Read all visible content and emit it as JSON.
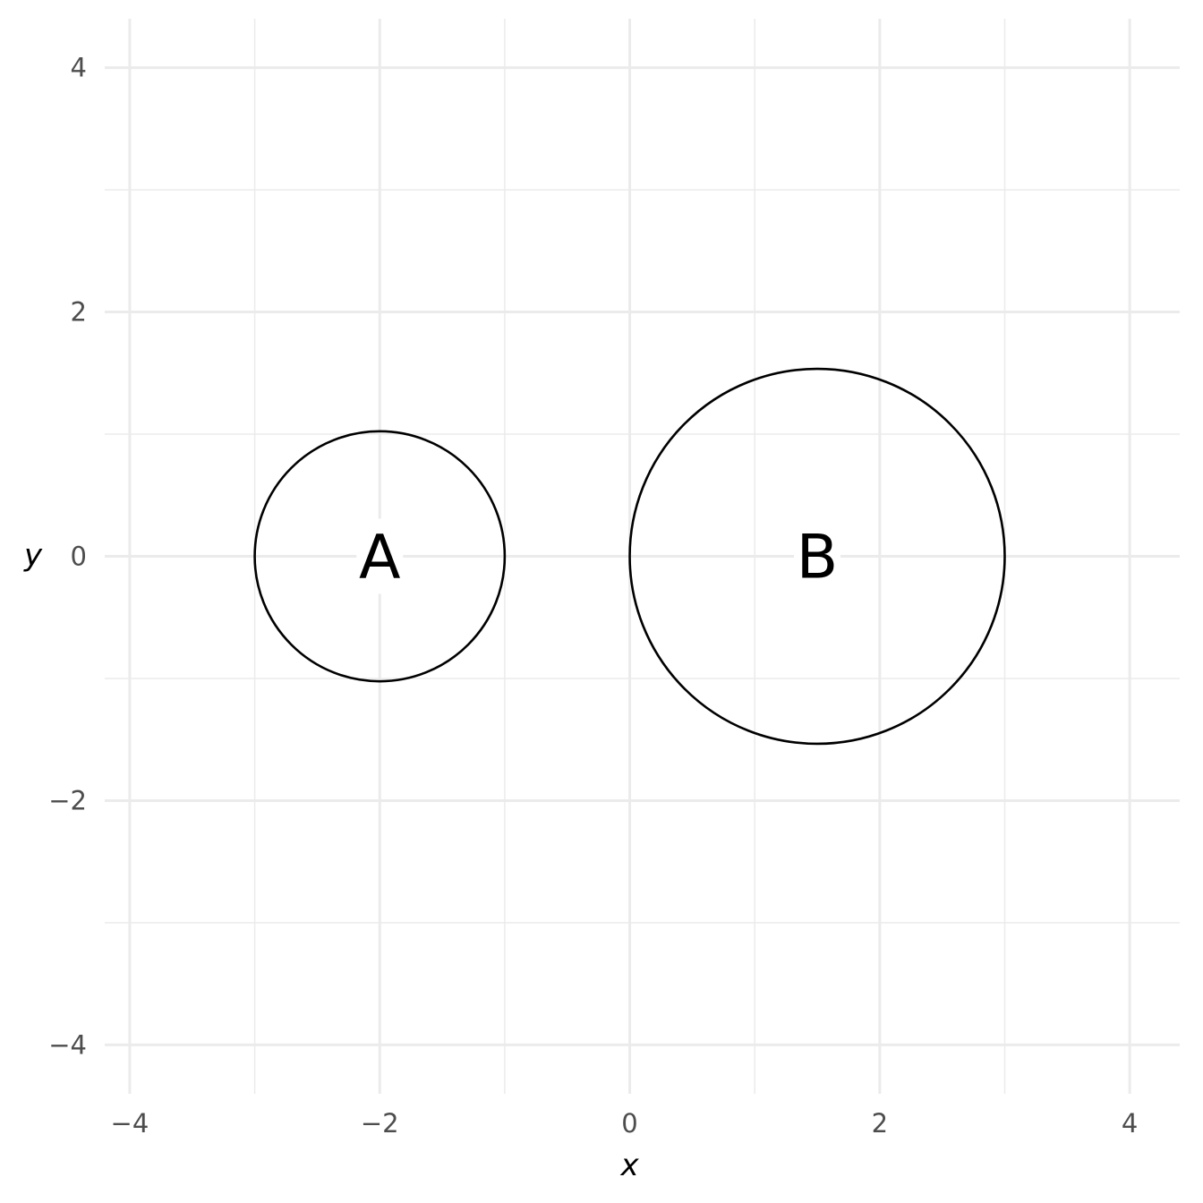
{
  "chart_data": {
    "type": "scatter",
    "title": "",
    "xlabel": "x",
    "ylabel": "y",
    "xlim": [
      -4.2,
      4.4
    ],
    "ylim": [
      -4.4,
      4.4
    ],
    "x_ticks": [
      -4,
      -2,
      0,
      2,
      4
    ],
    "y_ticks": [
      -4,
      -2,
      0,
      2,
      4
    ],
    "x_tick_labels": [
      "−4",
      "−2",
      "0",
      "2",
      "4"
    ],
    "y_tick_labels": [
      "−4",
      "−2",
      "0",
      "2",
      "4"
    ],
    "x_minor": [
      -3,
      -1,
      1,
      3
    ],
    "y_minor": [
      -3,
      -1,
      1,
      3
    ],
    "grid": true,
    "circles": [
      {
        "label": "A",
        "x": -2,
        "y": 0,
        "r": 1
      },
      {
        "label": "B",
        "x": 1.5,
        "y": 0,
        "r": 1.5
      }
    ]
  }
}
